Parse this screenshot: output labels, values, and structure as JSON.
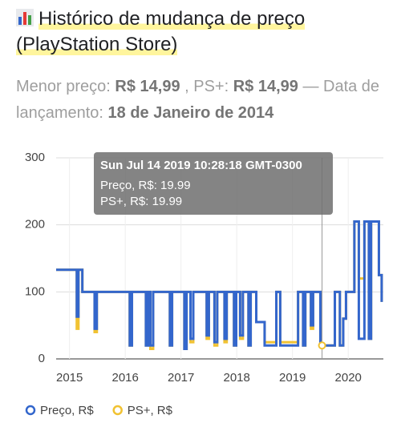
{
  "header": {
    "title": "Histórico de mudança de preço (PlayStation Store)",
    "summary": [
      {
        "text": "Menor preço: ",
        "bold": false
      },
      {
        "text": "R$ 14,99",
        "bold": true
      },
      {
        "text": " , PS+: ",
        "bold": false
      },
      {
        "text": "R$ 14,99",
        "bold": true
      },
      {
        "text": " — Data de lançamento: ",
        "bold": false
      },
      {
        "text": "18 de Janeiro de 2014",
        "bold": true
      }
    ]
  },
  "chart_data": {
    "type": "step",
    "x": [
      2014.76,
      2015.13,
      2015.16,
      2015.23,
      2015.45,
      2015.49,
      2016.08,
      2016.12,
      2016.37,
      2016.41,
      2016.45,
      2016.5,
      2016.8,
      2016.84,
      2017.06,
      2017.1,
      2017.17,
      2017.22,
      2017.46,
      2017.5,
      2017.6,
      2017.65,
      2017.78,
      2017.82,
      2017.95,
      2017.99,
      2018.06,
      2018.11,
      2018.21,
      2018.25,
      2018.35,
      2018.5,
      2018.71,
      2018.78,
      2019.1,
      2019.19,
      2019.23,
      2019.33,
      2019.37,
      2019.5,
      2019.76,
      2019.85,
      2019.91,
      2019.96,
      2020.11,
      2020.19,
      2020.29,
      2020.37,
      2020.41,
      2020.55,
      2020.6
    ],
    "series": [
      {
        "name": "Preço, R$",
        "color": "#3366cc",
        "values": [
          133,
          63,
          133,
          100,
          45,
          100,
          20,
          100,
          20,
          100,
          20,
          100,
          20,
          100,
          15,
          100,
          30,
          100,
          35,
          100,
          25,
          100,
          30,
          100,
          20,
          100,
          35,
          100,
          20,
          100,
          55,
          20,
          100,
          20,
          100,
          20,
          100,
          50,
          100,
          20,
          100,
          20,
          60,
          100,
          205,
          30,
          205,
          30,
          205,
          125,
          85
        ]
      },
      {
        "name": "PS+, R$",
        "color": "#f1c232",
        "values": [
          133,
          45,
          133,
          100,
          40,
          100,
          20,
          100,
          20,
          100,
          15,
          100,
          20,
          100,
          15,
          100,
          25,
          100,
          30,
          100,
          20,
          100,
          25,
          100,
          20,
          100,
          30,
          100,
          20,
          100,
          55,
          25,
          100,
          25,
          100,
          20,
          100,
          45,
          100,
          20,
          100,
          20,
          60,
          100,
          205,
          120,
          205,
          30,
          205,
          125,
          85
        ]
      }
    ],
    "xlim": [
      2014.76,
      2020.63
    ],
    "xticks": [
      2015,
      2016,
      2017,
      2018,
      2019,
      2020
    ],
    "ylim": [
      0,
      300
    ],
    "yticks": [
      0,
      100,
      200,
      300
    ],
    "grid": true,
    "tooltip": {
      "title": "Sun Jul 14 2019 10:28:18 GMT-0300",
      "x": 2019.53,
      "items": [
        {
          "label": "Preço, R$: 19.99",
          "value": 19.99
        },
        {
          "label": "PS+, R$: 19.99",
          "value": 19.99
        }
      ]
    }
  }
}
